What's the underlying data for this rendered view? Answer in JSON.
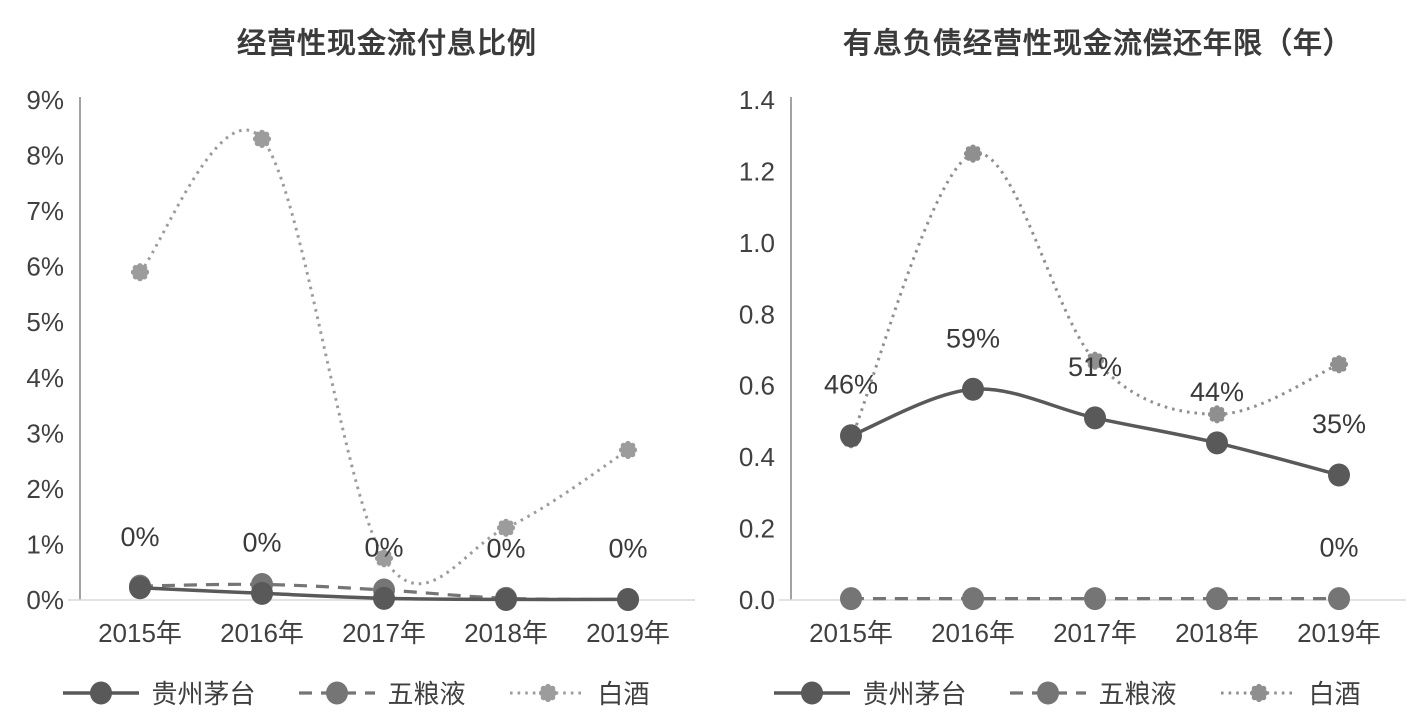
{
  "page": {
    "background": "#ffffff"
  },
  "styles": {
    "title_color": "#3b3b3b",
    "tick_label_color": "#404040",
    "data_label_color": "#3a3a3a",
    "y_axis_line_color": "#8a8a8a",
    "baseline_color": "#d9d9d9"
  },
  "chart_data": [
    {
      "type": "line",
      "title": "经营性现金流付息比例",
      "categories": [
        "2015年",
        "2016年",
        "2017年",
        "2018年",
        "2019年"
      ],
      "ylim": [
        0,
        9
      ],
      "ytick_labels": [
        "0%",
        "1%",
        "2%",
        "3%",
        "4%",
        "5%",
        "6%",
        "7%",
        "8%",
        "9%"
      ],
      "grid": false,
      "legend_position": "bottom",
      "smooth": true,
      "series": [
        {
          "name": "贵州茅台",
          "values": [
            0.22,
            0.12,
            0.03,
            0.01,
            0.01
          ],
          "data_labels": [
            "0%",
            "0%",
            "0%",
            "0%",
            "0%"
          ],
          "line_style": "solid",
          "marker": "circle",
          "color": "#595959"
        },
        {
          "name": "五粮液",
          "values": [
            0.25,
            0.28,
            0.18,
            0.03,
            0.01
          ],
          "data_labels": null,
          "line_style": "dashed",
          "marker": "circle",
          "color": "#757575"
        },
        {
          "name": "白酒",
          "values": [
            5.9,
            8.3,
            0.75,
            1.3,
            2.7
          ],
          "data_labels": null,
          "line_style": "dotted",
          "marker": "flower",
          "color": "#9c9c9c"
        }
      ]
    },
    {
      "type": "line",
      "title": "有息负债经营性现金流偿还年限（年）",
      "categories": [
        "2015年",
        "2016年",
        "2017年",
        "2018年",
        "2019年"
      ],
      "ylim": [
        0,
        1.4
      ],
      "ytick_labels": [
        "0.0",
        "0.2",
        "0.4",
        "0.6",
        "0.8",
        "1.0",
        "1.2",
        "1.4"
      ],
      "grid": false,
      "legend_position": "bottom",
      "smooth": true,
      "series": [
        {
          "name": "贵州茅台",
          "values": [
            0.46,
            0.59,
            0.51,
            0.44,
            0.35
          ],
          "data_labels": [
            "46%",
            "59%",
            "51%",
            "44%",
            "35%"
          ],
          "line_style": "solid",
          "marker": "circle",
          "color": "#595959"
        },
        {
          "name": "五粮液",
          "values": [
            0.004,
            0.004,
            0.004,
            0.004,
            0.004
          ],
          "data_labels": [
            null,
            null,
            null,
            null,
            "0%"
          ],
          "line_style": "dashed",
          "marker": "circle",
          "color": "#757575"
        },
        {
          "name": "白酒",
          "values": [
            0.45,
            1.25,
            0.67,
            0.52,
            0.66
          ],
          "data_labels": null,
          "line_style": "dotted",
          "marker": "flower",
          "color": "#8f8f8f"
        }
      ]
    }
  ]
}
